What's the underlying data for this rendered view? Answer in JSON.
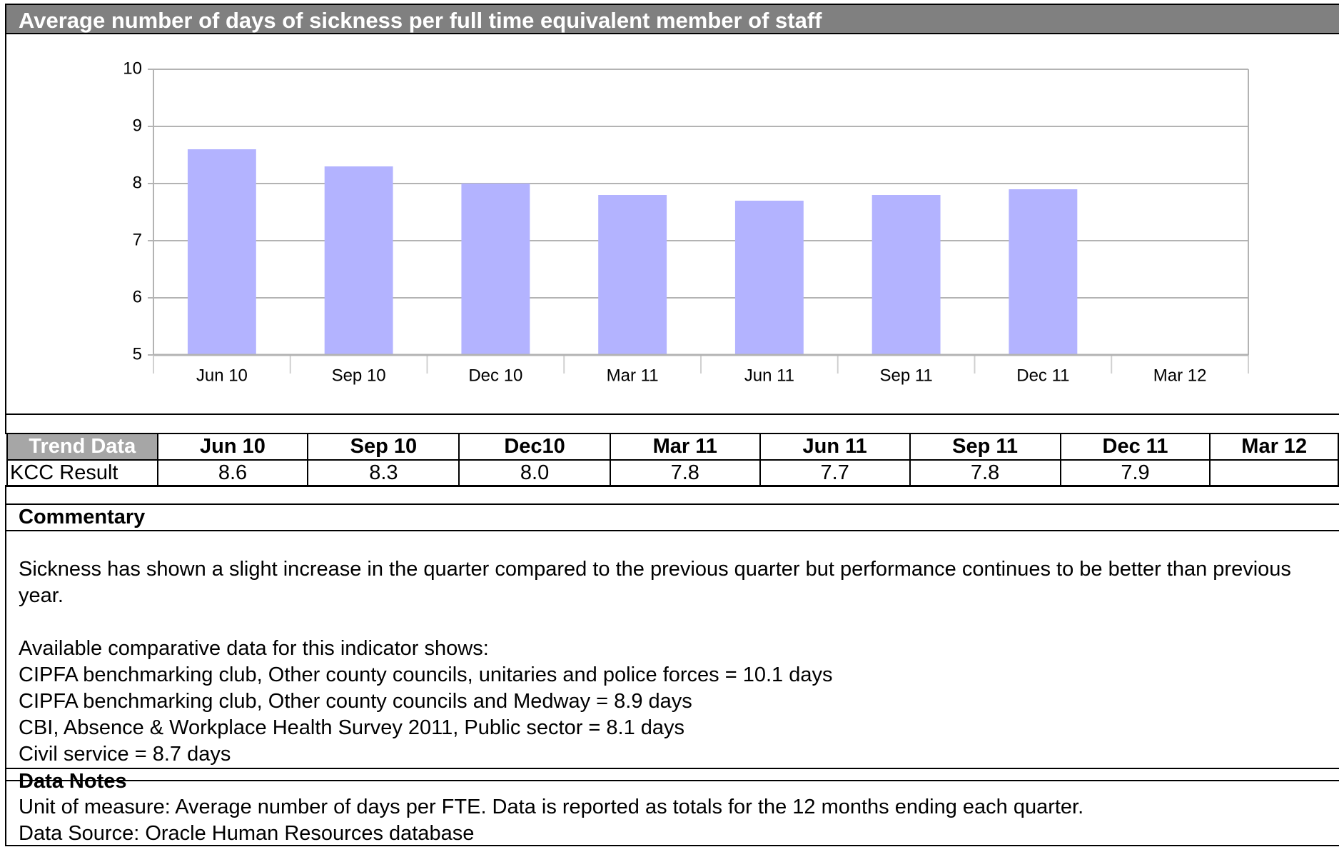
{
  "title": "Average number of days of sickness per full time equivalent member of staff",
  "chart_data": {
    "type": "bar",
    "categories": [
      "Jun 10",
      "Sep 10",
      "Dec 10",
      "Mar 11",
      "Jun 11",
      "Sep 11",
      "Dec 11",
      "Mar 12"
    ],
    "values": [
      8.6,
      8.3,
      8.0,
      7.8,
      7.7,
      7.8,
      7.9,
      null
    ],
    "color": "#b3b3ff",
    "ylim": [
      5,
      10
    ],
    "yticks": [
      5,
      6,
      7,
      8,
      9,
      10
    ],
    "grid": true
  },
  "table": {
    "header": [
      "Trend Data",
      "Jun 10",
      "Sep 10",
      "Dec10",
      "Mar 11",
      "Jun 11",
      "Sep 11",
      "Dec 11",
      "Mar 12"
    ],
    "rows": [
      [
        "KCC Result",
        "8.6",
        "8.3",
        "8.0",
        "7.8",
        "7.7",
        "7.8",
        "7.9",
        null
      ]
    ]
  },
  "commentary": {
    "heading": "Commentary",
    "text": "Sickness has shown a slight increase in the quarter compared to the previous quarter but performance continues to be better than previous year.",
    "intro": "Available comparative data for this indicator shows:",
    "comparatives": [
      "CIPFA benchmarking club, Other county councils, unitaries and police forces = 10.1 days",
      "CIPFA benchmarking club, Other county councils and Medway = 8.9 days",
      "CBI, Absence & Workplace Health Survey 2011, Public sector = 8.1 days",
      "Civil service = 8.7 days"
    ]
  },
  "data_notes": {
    "heading": "Data Notes",
    "lines": [
      "Unit of measure: Average number of days per FTE. Data is reported as totals for the 12 months ending each quarter.",
      "Data Source: Oracle Human Resources database"
    ]
  }
}
